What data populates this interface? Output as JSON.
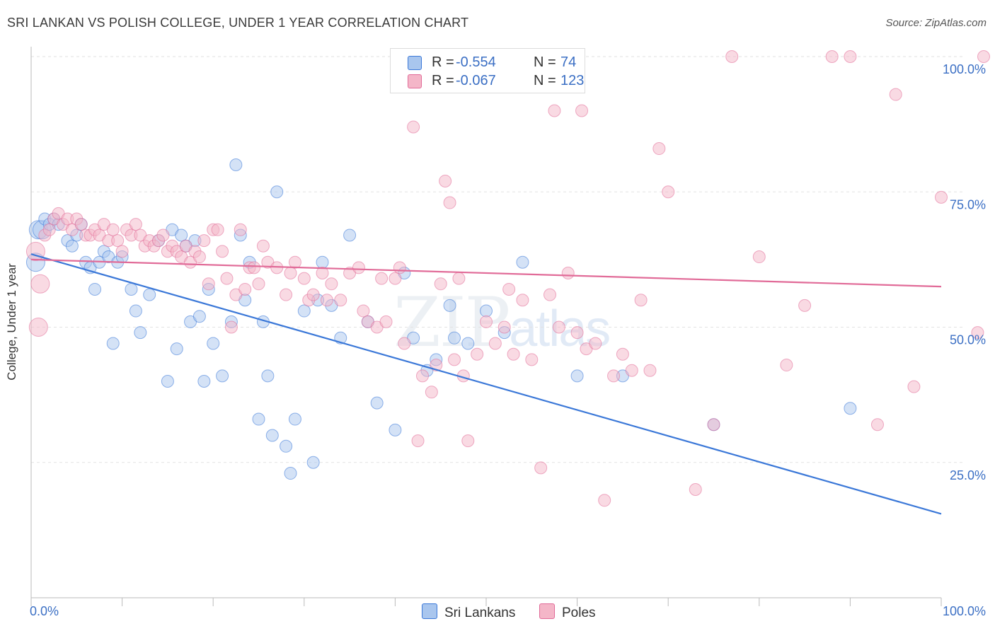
{
  "title": "SRI LANKAN VS POLISH COLLEGE, UNDER 1 YEAR CORRELATION CHART",
  "source": "Source: ZipAtlas.com",
  "watermark": {
    "zip": "ZIP",
    "atlas": "atlas"
  },
  "legend_top": [
    {
      "label": "R =",
      "r": "-0.554",
      "n_label": "N =",
      "n": "74",
      "color": "#a9c6ee"
    },
    {
      "label": "R =",
      "r": "-0.067",
      "n_label": "N =",
      "n": "123",
      "color": "#f4b6c8"
    }
  ],
  "legend_bottom": [
    {
      "name": "Sri Lankans",
      "color": "#a9c6ee"
    },
    {
      "name": "Poles",
      "color": "#f4b6c8"
    }
  ],
  "chart_data": {
    "type": "scatter",
    "title": "SRI LANKAN VS POLISH COLLEGE, UNDER 1 YEAR CORRELATION CHART",
    "xlabel": "",
    "ylabel": "College, Under 1 year",
    "xlim": [
      0,
      100
    ],
    "ylim": [
      0,
      100
    ],
    "x_tick_labels": [
      "0.0%",
      "100.0%"
    ],
    "y_tick_labels": [
      "25.0%",
      "50.0%",
      "75.0%",
      "100.0%"
    ],
    "y_ticks": [
      25,
      50,
      75,
      100
    ],
    "grid": "horizontal dashed",
    "legend_placement": "top-center",
    "series": [
      {
        "name": "Sri Lankans",
        "color": "#3b78d8",
        "fill": "#a9c6ee",
        "r": -0.554,
        "n": 74,
        "trend": [
          [
            0,
            63.5
          ],
          [
            100,
            15.5
          ]
        ],
        "points": [
          [
            0.5,
            62
          ],
          [
            0.8,
            68
          ],
          [
            1.2,
            68
          ],
          [
            1.5,
            70
          ],
          [
            2.0,
            69
          ],
          [
            2.5,
            70
          ],
          [
            3.0,
            69
          ],
          [
            4.0,
            66
          ],
          [
            4.5,
            65
          ],
          [
            5.0,
            67
          ],
          [
            5.5,
            69
          ],
          [
            6.0,
            62
          ],
          [
            6.5,
            61
          ],
          [
            7.0,
            57
          ],
          [
            7.5,
            62
          ],
          [
            8.0,
            64
          ],
          [
            8.5,
            63
          ],
          [
            9.0,
            47
          ],
          [
            9.5,
            62
          ],
          [
            10.0,
            63
          ],
          [
            11.0,
            57
          ],
          [
            11.5,
            53
          ],
          [
            12.0,
            49
          ],
          [
            13.0,
            56
          ],
          [
            14.0,
            66
          ],
          [
            15.0,
            40
          ],
          [
            15.5,
            68
          ],
          [
            16.0,
            46
          ],
          [
            16.5,
            67
          ],
          [
            17.0,
            65
          ],
          [
            17.5,
            51
          ],
          [
            18.0,
            66
          ],
          [
            18.5,
            52
          ],
          [
            19.0,
            40
          ],
          [
            19.5,
            57
          ],
          [
            20.0,
            47
          ],
          [
            21.0,
            41
          ],
          [
            22.0,
            51
          ],
          [
            22.5,
            80
          ],
          [
            23.0,
            67
          ],
          [
            23.5,
            55
          ],
          [
            24.0,
            62
          ],
          [
            25.0,
            33
          ],
          [
            25.5,
            51
          ],
          [
            26.0,
            41
          ],
          [
            26.5,
            30
          ],
          [
            27.0,
            75
          ],
          [
            28.0,
            28
          ],
          [
            28.5,
            23
          ],
          [
            29.0,
            33
          ],
          [
            30.0,
            53
          ],
          [
            31.0,
            25
          ],
          [
            31.5,
            55
          ],
          [
            32.0,
            62
          ],
          [
            33.0,
            54
          ],
          [
            34.0,
            48
          ],
          [
            35.0,
            67
          ],
          [
            37.0,
            51
          ],
          [
            38.0,
            36
          ],
          [
            40.0,
            31
          ],
          [
            41.0,
            60
          ],
          [
            42.0,
            48
          ],
          [
            43.5,
            42
          ],
          [
            44.5,
            44
          ],
          [
            46.0,
            54
          ],
          [
            46.5,
            48
          ],
          [
            48.0,
            47
          ],
          [
            50.0,
            53
          ],
          [
            52.0,
            49
          ],
          [
            54.0,
            62
          ],
          [
            60.0,
            41
          ],
          [
            65.0,
            41
          ],
          [
            75.0,
            32
          ],
          [
            90.0,
            35
          ]
        ]
      },
      {
        "name": "Poles",
        "color": "#e16b98",
        "fill": "#f4b6c8",
        "r": -0.067,
        "n": 123,
        "trend": [
          [
            0,
            62.5
          ],
          [
            100,
            57.5
          ]
        ],
        "points": [
          [
            0.5,
            64
          ],
          [
            0.8,
            50
          ],
          [
            1.0,
            58
          ],
          [
            1.5,
            67
          ],
          [
            2.0,
            68
          ],
          [
            2.5,
            70
          ],
          [
            3.0,
            71
          ],
          [
            3.5,
            69
          ],
          [
            4.0,
            70
          ],
          [
            4.5,
            68
          ],
          [
            5.0,
            70
          ],
          [
            5.5,
            69
          ],
          [
            6.0,
            67
          ],
          [
            6.5,
            67
          ],
          [
            7.0,
            68
          ],
          [
            7.5,
            67
          ],
          [
            8.0,
            69
          ],
          [
            8.5,
            66
          ],
          [
            9.0,
            68
          ],
          [
            9.5,
            66
          ],
          [
            10.0,
            64
          ],
          [
            10.5,
            68
          ],
          [
            11.0,
            67
          ],
          [
            11.5,
            69
          ],
          [
            12.0,
            67
          ],
          [
            12.5,
            65
          ],
          [
            13.0,
            66
          ],
          [
            13.5,
            65
          ],
          [
            14.0,
            66
          ],
          [
            14.5,
            67
          ],
          [
            15.0,
            64
          ],
          [
            15.5,
            65
          ],
          [
            16.0,
            64
          ],
          [
            16.5,
            63
          ],
          [
            17.0,
            65
          ],
          [
            17.5,
            62
          ],
          [
            18.0,
            64
          ],
          [
            18.5,
            63
          ],
          [
            19.0,
            66
          ],
          [
            19.5,
            58
          ],
          [
            20.0,
            68
          ],
          [
            20.5,
            68
          ],
          [
            21.0,
            64
          ],
          [
            21.5,
            59
          ],
          [
            22.0,
            50
          ],
          [
            22.5,
            56
          ],
          [
            23.0,
            68
          ],
          [
            23.5,
            57
          ],
          [
            24.0,
            61
          ],
          [
            24.5,
            61
          ],
          [
            25.0,
            58
          ],
          [
            25.5,
            65
          ],
          [
            26.0,
            62
          ],
          [
            27.0,
            61
          ],
          [
            28.0,
            56
          ],
          [
            28.5,
            60
          ],
          [
            29.0,
            62
          ],
          [
            30.0,
            59
          ],
          [
            30.5,
            55
          ],
          [
            31.0,
            56
          ],
          [
            32.0,
            60
          ],
          [
            32.5,
            55
          ],
          [
            33.0,
            58
          ],
          [
            34.0,
            55
          ],
          [
            35.0,
            60
          ],
          [
            36.0,
            61
          ],
          [
            36.5,
            53
          ],
          [
            37.0,
            51
          ],
          [
            38.0,
            50
          ],
          [
            38.5,
            59
          ],
          [
            39.0,
            51
          ],
          [
            40.0,
            59
          ],
          [
            40.5,
            61
          ],
          [
            41.0,
            47
          ],
          [
            42.0,
            87
          ],
          [
            42.5,
            29
          ],
          [
            43.0,
            41
          ],
          [
            44.0,
            38
          ],
          [
            44.5,
            43
          ],
          [
            45.0,
            58
          ],
          [
            46.0,
            73
          ],
          [
            46.5,
            44
          ],
          [
            47.0,
            59
          ],
          [
            47.5,
            41
          ],
          [
            48.0,
            29
          ],
          [
            49.0,
            45
          ],
          [
            50.0,
            51
          ],
          [
            51.0,
            47
          ],
          [
            52.0,
            50
          ],
          [
            52.5,
            57
          ],
          [
            53.0,
            45
          ],
          [
            54.0,
            55
          ],
          [
            55.0,
            44
          ],
          [
            56.0,
            24
          ],
          [
            57.0,
            56
          ],
          [
            58.0,
            50
          ],
          [
            59.0,
            60
          ],
          [
            60.0,
            49
          ],
          [
            61.0,
            46
          ],
          [
            62.0,
            47
          ],
          [
            63.0,
            18
          ],
          [
            64.0,
            41
          ],
          [
            65.0,
            45
          ],
          [
            66.0,
            42
          ],
          [
            67.0,
            55
          ],
          [
            68.0,
            42
          ],
          [
            69.0,
            83
          ],
          [
            70.0,
            75
          ],
          [
            73.0,
            20
          ],
          [
            75.0,
            32
          ],
          [
            77.0,
            100
          ],
          [
            80.0,
            63
          ],
          [
            83.0,
            43
          ],
          [
            85.0,
            54
          ],
          [
            88.0,
            100
          ],
          [
            90.0,
            100
          ],
          [
            93.0,
            32
          ],
          [
            95.0,
            93
          ],
          [
            97.0,
            39
          ],
          [
            100.0,
            74
          ],
          [
            104.0,
            49
          ],
          [
            105.0,
            100
          ],
          [
            60.5,
            90
          ],
          [
            57.5,
            90
          ],
          [
            45.5,
            77
          ]
        ]
      }
    ]
  }
}
